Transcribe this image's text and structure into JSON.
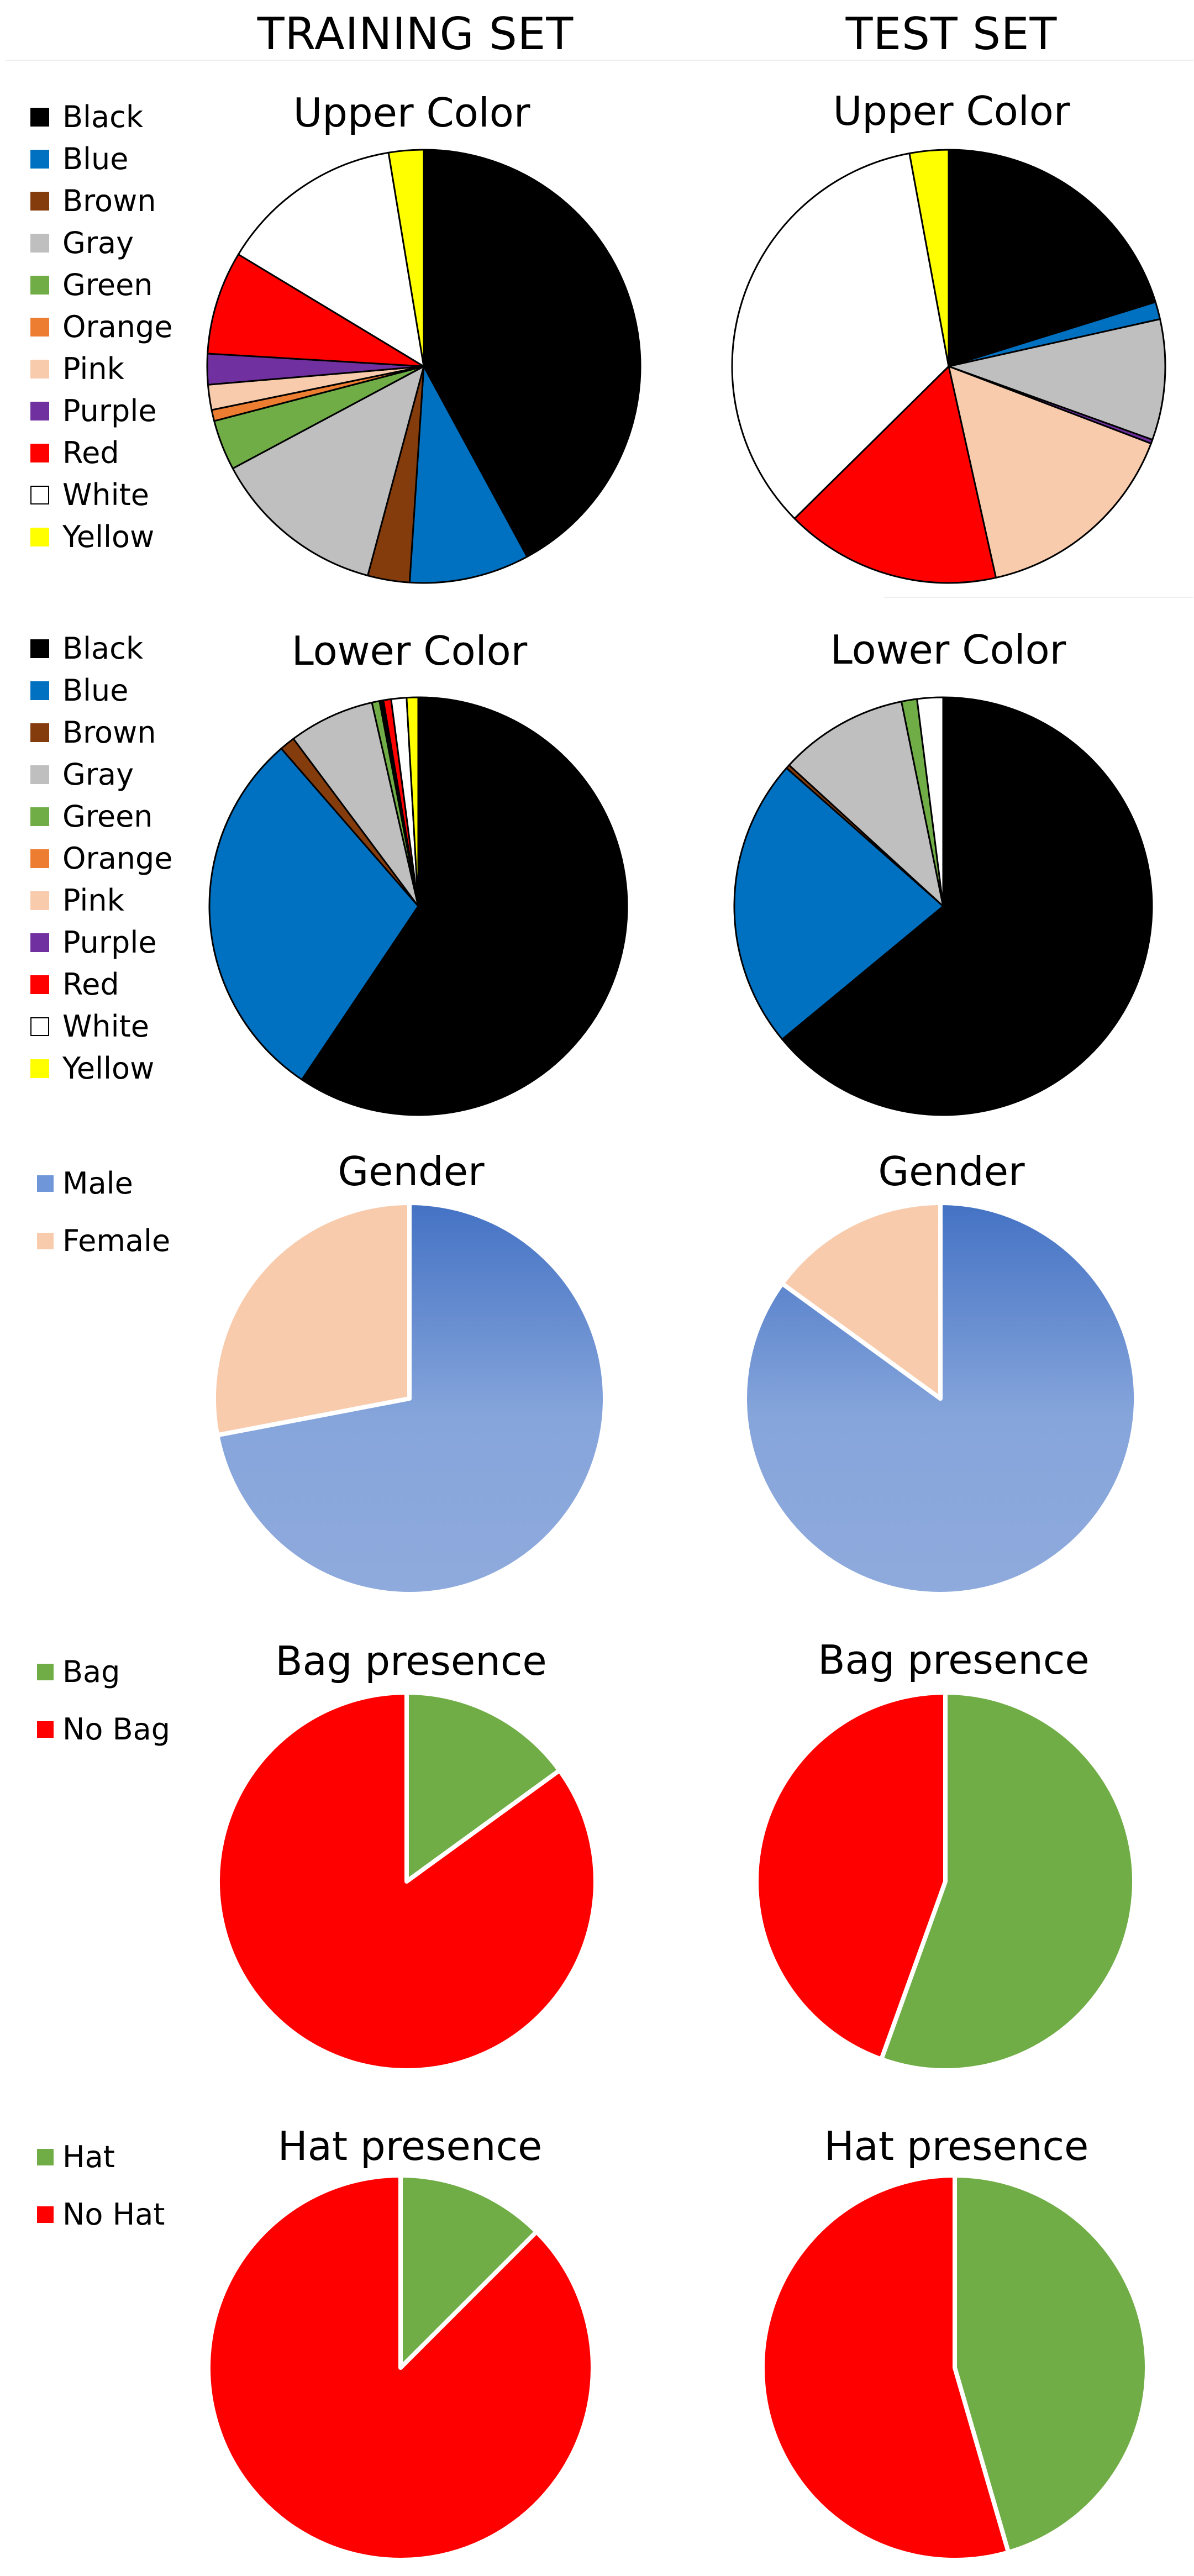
{
  "headers": {
    "training": "TRAINING SET",
    "test": "TEST SET"
  },
  "colors": {
    "Black": "#000000",
    "Blue": "#0070c0",
    "Brown": "#843c0c",
    "Gray": "#bfbfbf",
    "Green": "#70ad47",
    "Orange": "#ed7d31",
    "Pink": "#f8cbad",
    "Purple": "#7030a0",
    "Red": "#ff0000",
    "White": "#ffffff",
    "Yellow": "#ffff00",
    "Male": "#6f96d8",
    "Female": "#f8cbad",
    "Bag": "#70ad47",
    "No Bag": "#ff0000",
    "Hat": "#70ad47",
    "No Hat": "#ff0000"
  },
  "legends": {
    "color": [
      "Black",
      "Blue",
      "Brown",
      "Gray",
      "Green",
      "Orange",
      "Pink",
      "Purple",
      "Red",
      "White",
      "Yellow"
    ],
    "gender": [
      "Male",
      "Female"
    ],
    "bag": [
      "Bag",
      "No Bag"
    ],
    "hat": [
      "Hat",
      "No Hat"
    ]
  },
  "chart_data": [
    {
      "type": "pie",
      "title": "Upper Color",
      "set": "TRAINING SET",
      "slices": [
        {
          "label": "Black",
          "value": 40.4
        },
        {
          "label": "Blue",
          "value": 8.6
        },
        {
          "label": "Brown",
          "value": 3.0
        },
        {
          "label": "Gray",
          "value": 12.5
        },
        {
          "label": "Green",
          "value": 3.6
        },
        {
          "label": "Orange",
          "value": 0.8
        },
        {
          "label": "Pink",
          "value": 1.8
        },
        {
          "label": "Purple",
          "value": 2.2
        },
        {
          "label": "Red",
          "value": 7.4
        },
        {
          "label": "White",
          "value": 13.2
        },
        {
          "label": "Yellow",
          "value": 2.5
        }
      ]
    },
    {
      "type": "pie",
      "title": "Upper Color",
      "set": "TEST SET",
      "slices": [
        {
          "label": "Black",
          "value": 20.2
        },
        {
          "label": "Blue",
          "value": 1.3
        },
        {
          "label": "Gray",
          "value": 9.0
        },
        {
          "label": "Purple",
          "value": 0.3
        },
        {
          "label": "Pink",
          "value": 15.7
        },
        {
          "label": "Red",
          "value": 16.1
        },
        {
          "label": "White",
          "value": 34.5
        },
        {
          "label": "Yellow",
          "value": 2.9
        }
      ]
    },
    {
      "type": "pie",
      "title": "Lower Color",
      "set": "TRAINING SET",
      "slices": [
        {
          "label": "Black",
          "value": 60.0
        },
        {
          "label": "Blue",
          "value": 29.5
        },
        {
          "label": "Brown",
          "value": 1.2
        },
        {
          "label": "Gray",
          "value": 6.7
        },
        {
          "label": "Green",
          "value": 0.6
        },
        {
          "label": "Black",
          "value": 0.3
        },
        {
          "label": "Red",
          "value": 0.6
        },
        {
          "label": "White",
          "value": 1.2
        },
        {
          "label": "Yellow",
          "value": 0.9
        }
      ]
    },
    {
      "type": "pie",
      "title": "Lower Color",
      "set": "TEST SET",
      "slices": [
        {
          "label": "Black",
          "value": 64.0
        },
        {
          "label": "Blue",
          "value": 22.5
        },
        {
          "label": "Brown",
          "value": 0.3
        },
        {
          "label": "Gray",
          "value": 10.0
        },
        {
          "label": "Green",
          "value": 1.2
        },
        {
          "label": "White",
          "value": 2.0
        }
      ]
    },
    {
      "type": "pie",
      "title": "Gender",
      "set": "TRAINING SET",
      "slices": [
        {
          "label": "Male",
          "value": 72.0
        },
        {
          "label": "Female",
          "value": 28.0
        }
      ]
    },
    {
      "type": "pie",
      "title": "Gender",
      "set": "TEST SET",
      "slices": [
        {
          "label": "Male",
          "value": 85.0
        },
        {
          "label": "Female",
          "value": 15.0
        }
      ]
    },
    {
      "type": "pie",
      "title": "Bag presence",
      "set": "TRAINING SET",
      "slices": [
        {
          "label": "Bag",
          "value": 15.0
        },
        {
          "label": "No Bag",
          "value": 85.0
        }
      ]
    },
    {
      "type": "pie",
      "title": "Bag presence",
      "set": "TEST SET",
      "slices": [
        {
          "label": "Bag",
          "value": 55.5
        },
        {
          "label": "No Bag",
          "value": 44.5
        }
      ]
    },
    {
      "type": "pie",
      "title": "Hat presence",
      "set": "TRAINING SET",
      "slices": [
        {
          "label": "Hat",
          "value": 12.5
        },
        {
          "label": "No Hat",
          "value": 87.5
        }
      ]
    },
    {
      "type": "pie",
      "title": "Hat presence",
      "set": "TEST SET",
      "slices": [
        {
          "label": "Hat",
          "value": 45.5
        },
        {
          "label": "No Hat",
          "value": 54.5
        }
      ]
    }
  ]
}
